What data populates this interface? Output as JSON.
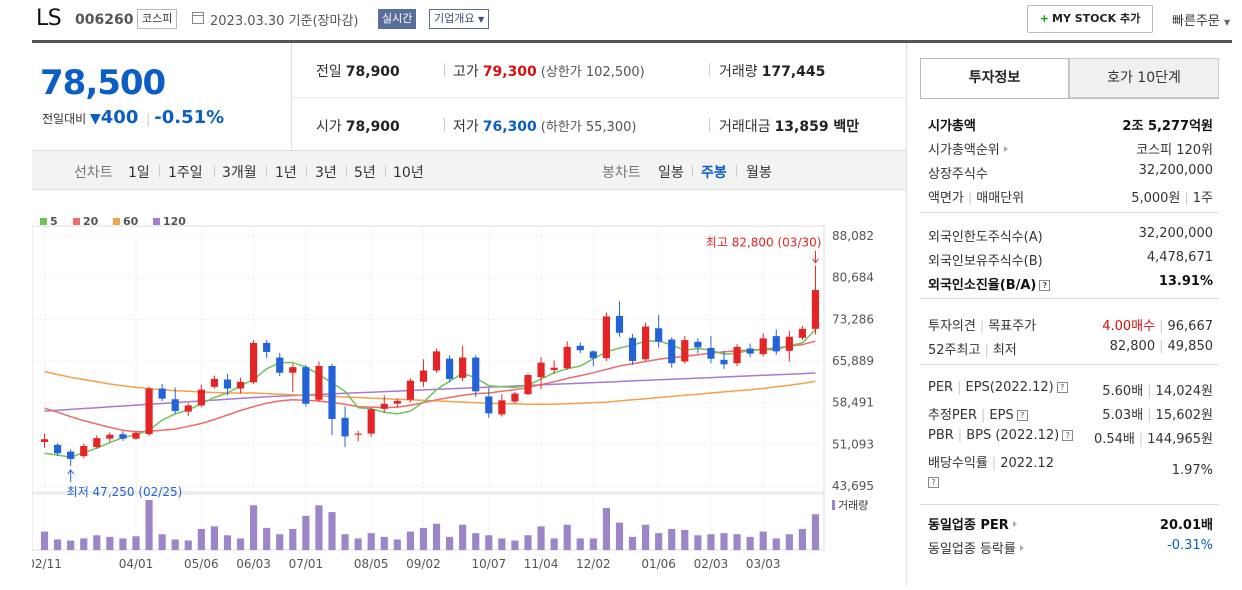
{
  "header": {
    "stock_name": "LS",
    "stock_code": "006260",
    "market_badge": "코스피",
    "date_text": "2023.03.30 기준(장마감)",
    "realtime_badge": "실시간",
    "corp_overview": "기업개요",
    "mystock_button": "MY STOCK 추가",
    "quick_order": "빠른주문"
  },
  "price": {
    "current": "78,500",
    "change_label": "전일대비",
    "change_value": "400",
    "change_rate": "-0.51%"
  },
  "info": {
    "prev_label": "전일",
    "prev": "78,900",
    "high_label": "고가",
    "high": "79,300",
    "upper_limit": "(상한가 102,500)",
    "volume_label": "거래량",
    "volume": "177,445",
    "open_label": "시가",
    "open": "78,900",
    "low_label": "저가",
    "low": "76,300",
    "lower_limit": "(하한가 55,300)",
    "amount_label": "거래대금",
    "amount": "13,859 백만"
  },
  "period_bar": {
    "line_label": "선차트",
    "line_items": [
      "1일",
      "1주일",
      "3개월",
      "1년",
      "3년",
      "5년",
      "10년"
    ],
    "candle_label": "봉차트",
    "candle_items": [
      "일봉",
      "주봉",
      "월봉"
    ],
    "active_candle": "주봉"
  },
  "chart_data": {
    "type": "candlestick",
    "legend": [
      "5",
      "20",
      "60",
      "120"
    ],
    "colors": {
      "up": "#e52525",
      "down": "#2462d8",
      "ma5": "#6fc35a",
      "ma20": "#ee6b6b",
      "ma60": "#f5a04a",
      "ma120": "#a57bd0",
      "volume": "#9d86c8"
    },
    "y_ticks": [
      "88,082",
      "80,684",
      "73,286",
      "65,889",
      "58,491",
      "51,093",
      "43,695"
    ],
    "ylim": [
      43695,
      88082
    ],
    "x_ticks": [
      "02/11",
      "04/01",
      "05/06",
      "06/03",
      "07/01",
      "08/05",
      "09/02",
      "10/07",
      "11/04",
      "12/02",
      "01/06",
      "02/03",
      "03/03"
    ],
    "x_tick_index": [
      0,
      7,
      12,
      16,
      20,
      25,
      29,
      34,
      38,
      42,
      47,
      51,
      55
    ],
    "max_label": "최고 82,800 (03/30)",
    "min_label": "최저 47,250 (02/25)",
    "volume_label": "거래량",
    "candles": [
      [
        51500,
        53000,
        50500,
        52000
      ],
      [
        51000,
        51300,
        49000,
        49500
      ],
      [
        49800,
        50200,
        47250,
        48500
      ],
      [
        49000,
        51200,
        48600,
        50800
      ],
      [
        50600,
        52700,
        50300,
        52200
      ],
      [
        52100,
        53200,
        51500,
        52800
      ],
      [
        52900,
        53400,
        51700,
        52100
      ],
      [
        52100,
        53500,
        51900,
        53100
      ],
      [
        52900,
        61300,
        52600,
        61000
      ],
      [
        61000,
        61800,
        58800,
        59200
      ],
      [
        59100,
        61200,
        56500,
        57000
      ],
      [
        56900,
        58400,
        56100,
        58000
      ],
      [
        58000,
        61700,
        57700,
        60800
      ],
      [
        61300,
        63300,
        61000,
        62700
      ],
      [
        62600,
        63600,
        59800,
        61000
      ],
      [
        61000,
        62900,
        60100,
        62200
      ],
      [
        62100,
        69600,
        61800,
        69100
      ],
      [
        69100,
        69600,
        66400,
        67500
      ],
      [
        66500,
        67300,
        63200,
        63800
      ],
      [
        63800,
        65400,
        60400,
        64800
      ],
      [
        64800,
        65200,
        57800,
        58300
      ],
      [
        59000,
        65800,
        58600,
        65000
      ],
      [
        65000,
        65400,
        52700,
        55600
      ],
      [
        55800,
        57800,
        50600,
        52500
      ],
      [
        52800,
        53500,
        51600,
        53000
      ],
      [
        53000,
        57600,
        52400,
        57300
      ],
      [
        57400,
        59800,
        56700,
        58300
      ],
      [
        58300,
        59200,
        57700,
        58800
      ],
      [
        59000,
        62800,
        58600,
        62400
      ],
      [
        62200,
        66200,
        61300,
        64200
      ],
      [
        64200,
        68100,
        63800,
        67600
      ],
      [
        66300,
        66900,
        62100,
        62700
      ],
      [
        62900,
        68600,
        62300,
        66500
      ],
      [
        66500,
        66900,
        59500,
        60500
      ],
      [
        59600,
        61100,
        55800,
        56600
      ],
      [
        56400,
        60000,
        56000,
        58900
      ],
      [
        58700,
        60400,
        58300,
        60100
      ],
      [
        60000,
        63700,
        59800,
        63400
      ],
      [
        63000,
        66600,
        60900,
        65600
      ],
      [
        64300,
        66000,
        63600,
        64700
      ],
      [
        64600,
        69400,
        64300,
        68400
      ],
      [
        68600,
        69200,
        67300,
        67800
      ],
      [
        67600,
        67800,
        65000,
        66400
      ],
      [
        66400,
        74500,
        65900,
        73800
      ],
      [
        73900,
        76500,
        70200,
        70900
      ],
      [
        70000,
        70700,
        65200,
        65900
      ],
      [
        66200,
        72700,
        65900,
        72000
      ],
      [
        71700,
        74100,
        68300,
        69300
      ],
      [
        69700,
        70100,
        64700,
        65500
      ],
      [
        65800,
        70300,
        65400,
        69600
      ],
      [
        69300,
        69900,
        67300,
        68300
      ],
      [
        68200,
        70300,
        65500,
        66300
      ],
      [
        66100,
        67700,
        64500,
        65300
      ],
      [
        65500,
        68900,
        65000,
        68400
      ],
      [
        68100,
        69000,
        66600,
        67200
      ],
      [
        67100,
        70800,
        66700,
        69900
      ],
      [
        70300,
        71500,
        67000,
        67600
      ],
      [
        67700,
        71200,
        65800,
        70200
      ],
      [
        70000,
        72100,
        69600,
        71600
      ],
      [
        71600,
        82800,
        70600,
        78500
      ]
    ],
    "volumes": [
      35,
      20,
      18,
      22,
      28,
      25,
      22,
      26,
      95,
      30,
      20,
      18,
      40,
      45,
      28,
      22,
      85,
      42,
      30,
      40,
      65,
      85,
      72,
      30,
      22,
      32,
      25,
      20,
      35,
      42,
      50,
      25,
      48,
      32,
      28,
      22,
      18,
      28,
      45,
      22,
      48,
      22,
      22,
      80,
      52,
      25,
      48,
      32,
      40,
      38,
      28,
      30,
      32,
      30,
      25,
      35,
      22,
      30,
      40,
      68
    ],
    "ma5": [
      49500,
      49200,
      48800,
      49600,
      50400,
      51400,
      52300,
      52800,
      53600,
      55400,
      56500,
      57200,
      58300,
      59400,
      60200,
      61500,
      62600,
      64500,
      65600,
      65600,
      64800,
      63500,
      62000,
      60500,
      57600,
      57400,
      56800,
      56500,
      57000,
      58600,
      60800,
      62300,
      63700,
      62900,
      61500,
      61300,
      61200,
      61600,
      62700,
      63800,
      64500,
      65000,
      66300,
      67500,
      68200,
      68700,
      69400,
      69500,
      68700,
      67800,
      68100,
      67800,
      67100,
      67300,
      67800,
      67900,
      67900,
      68600,
      69100,
      71500
    ],
    "ma20": [
      57500,
      56800,
      56000,
      55300,
      54700,
      54100,
      53600,
      53300,
      53400,
      53600,
      53800,
      54300,
      54800,
      55500,
      56300,
      57100,
      57800,
      58400,
      58800,
      59000,
      58900,
      58800,
      58500,
      58200,
      57800,
      57700,
      57600,
      57700,
      58000,
      58500,
      59000,
      59400,
      59800,
      60100,
      60200,
      60500,
      60800,
      61200,
      61700,
      62200,
      62800,
      63300,
      63800,
      64400,
      65000,
      65400,
      65800,
      66200,
      66500,
      66700,
      67000,
      67300,
      67500,
      67700,
      67800,
      68000,
      68200,
      68500,
      68800,
      69400
    ],
    "ma60": [
      64000,
      63500,
      63000,
      62600,
      62200,
      61800,
      61500,
      61200,
      61000,
      60800,
      60600,
      60500,
      60400,
      60300,
      60200,
      60200,
      60200,
      60100,
      60000,
      59900,
      59800,
      59700,
      59600,
      59500,
      59400,
      59300,
      59200,
      59100,
      59000,
      58900,
      58800,
      58700,
      58600,
      58500,
      58400,
      58300,
      58300,
      58200,
      58200,
      58200,
      58300,
      58400,
      58500,
      58600,
      58800,
      59000,
      59200,
      59400,
      59600,
      59800,
      60000,
      60200,
      60400,
      60600,
      60800,
      61000,
      61300,
      61600,
      61900,
      62300
    ],
    "ma120": [
      57000,
      57150,
      57300,
      57450,
      57600,
      57750,
      57900,
      58050,
      58200,
      58350,
      58500,
      58650,
      58800,
      58950,
      59100,
      59250,
      59400,
      59550,
      59650,
      59750,
      59850,
      59950,
      60050,
      60150,
      60250,
      60350,
      60450,
      60550,
      60650,
      60750,
      60850,
      60950,
      61050,
      61150,
      61250,
      61350,
      61450,
      61550,
      61650,
      61750,
      61850,
      61950,
      62050,
      62150,
      62250,
      62350,
      62450,
      62550,
      62650,
      62750,
      62850,
      62950,
      63050,
      63150,
      63250,
      63350,
      63450,
      63550,
      63650,
      63750
    ]
  },
  "invest": {
    "tab_active": "투자정보",
    "tab_other": "호가 10단계",
    "market_cap_label": "시가총액",
    "market_cap": "2조 5,277억원",
    "rank_label": "시가총액순위",
    "rank": "코스피 120위",
    "shares_label": "상장주식수",
    "shares": "32,200,000",
    "par_label": "액면가",
    "unit_label": "매매단위",
    "par": "5,000원",
    "unit": "1주",
    "foreign_limit_label": "외국인한도주식수(A)",
    "foreign_limit": "32,200,000",
    "foreign_hold_label": "외국인보유주식수(B)",
    "foreign_hold": "4,478,671",
    "foreign_rate_label": "외국인소진율(B/A)",
    "foreign_rate": "13.91%",
    "opinion_label": "투자의견",
    "target_label": "목표주가",
    "opinion": "4.00매수",
    "target": "96,667",
    "w52_label": "52주최고",
    "w52_low_label": "최저",
    "w52_high": "82,800",
    "w52_low": "49,850",
    "per_label": "PER",
    "eps_label": "EPS(2022.12)",
    "per": "5.60배",
    "eps": "14,024원",
    "est_per_label": "추정PER",
    "est_eps_label": "EPS",
    "est_per": "5.03배",
    "est_eps": "15,602원",
    "pbr_label": "PBR",
    "bps_label": "BPS (2022.12)",
    "pbr": "0.54배",
    "bps": "144,965원",
    "div_label": "배당수익률",
    "div_period": "2022.12",
    "div": "1.97%",
    "sector_per_label": "동일업종 PER",
    "sector_per": "20.01배",
    "sector_chg_label": "동일업종 등락률",
    "sector_chg": "-0.31%"
  }
}
